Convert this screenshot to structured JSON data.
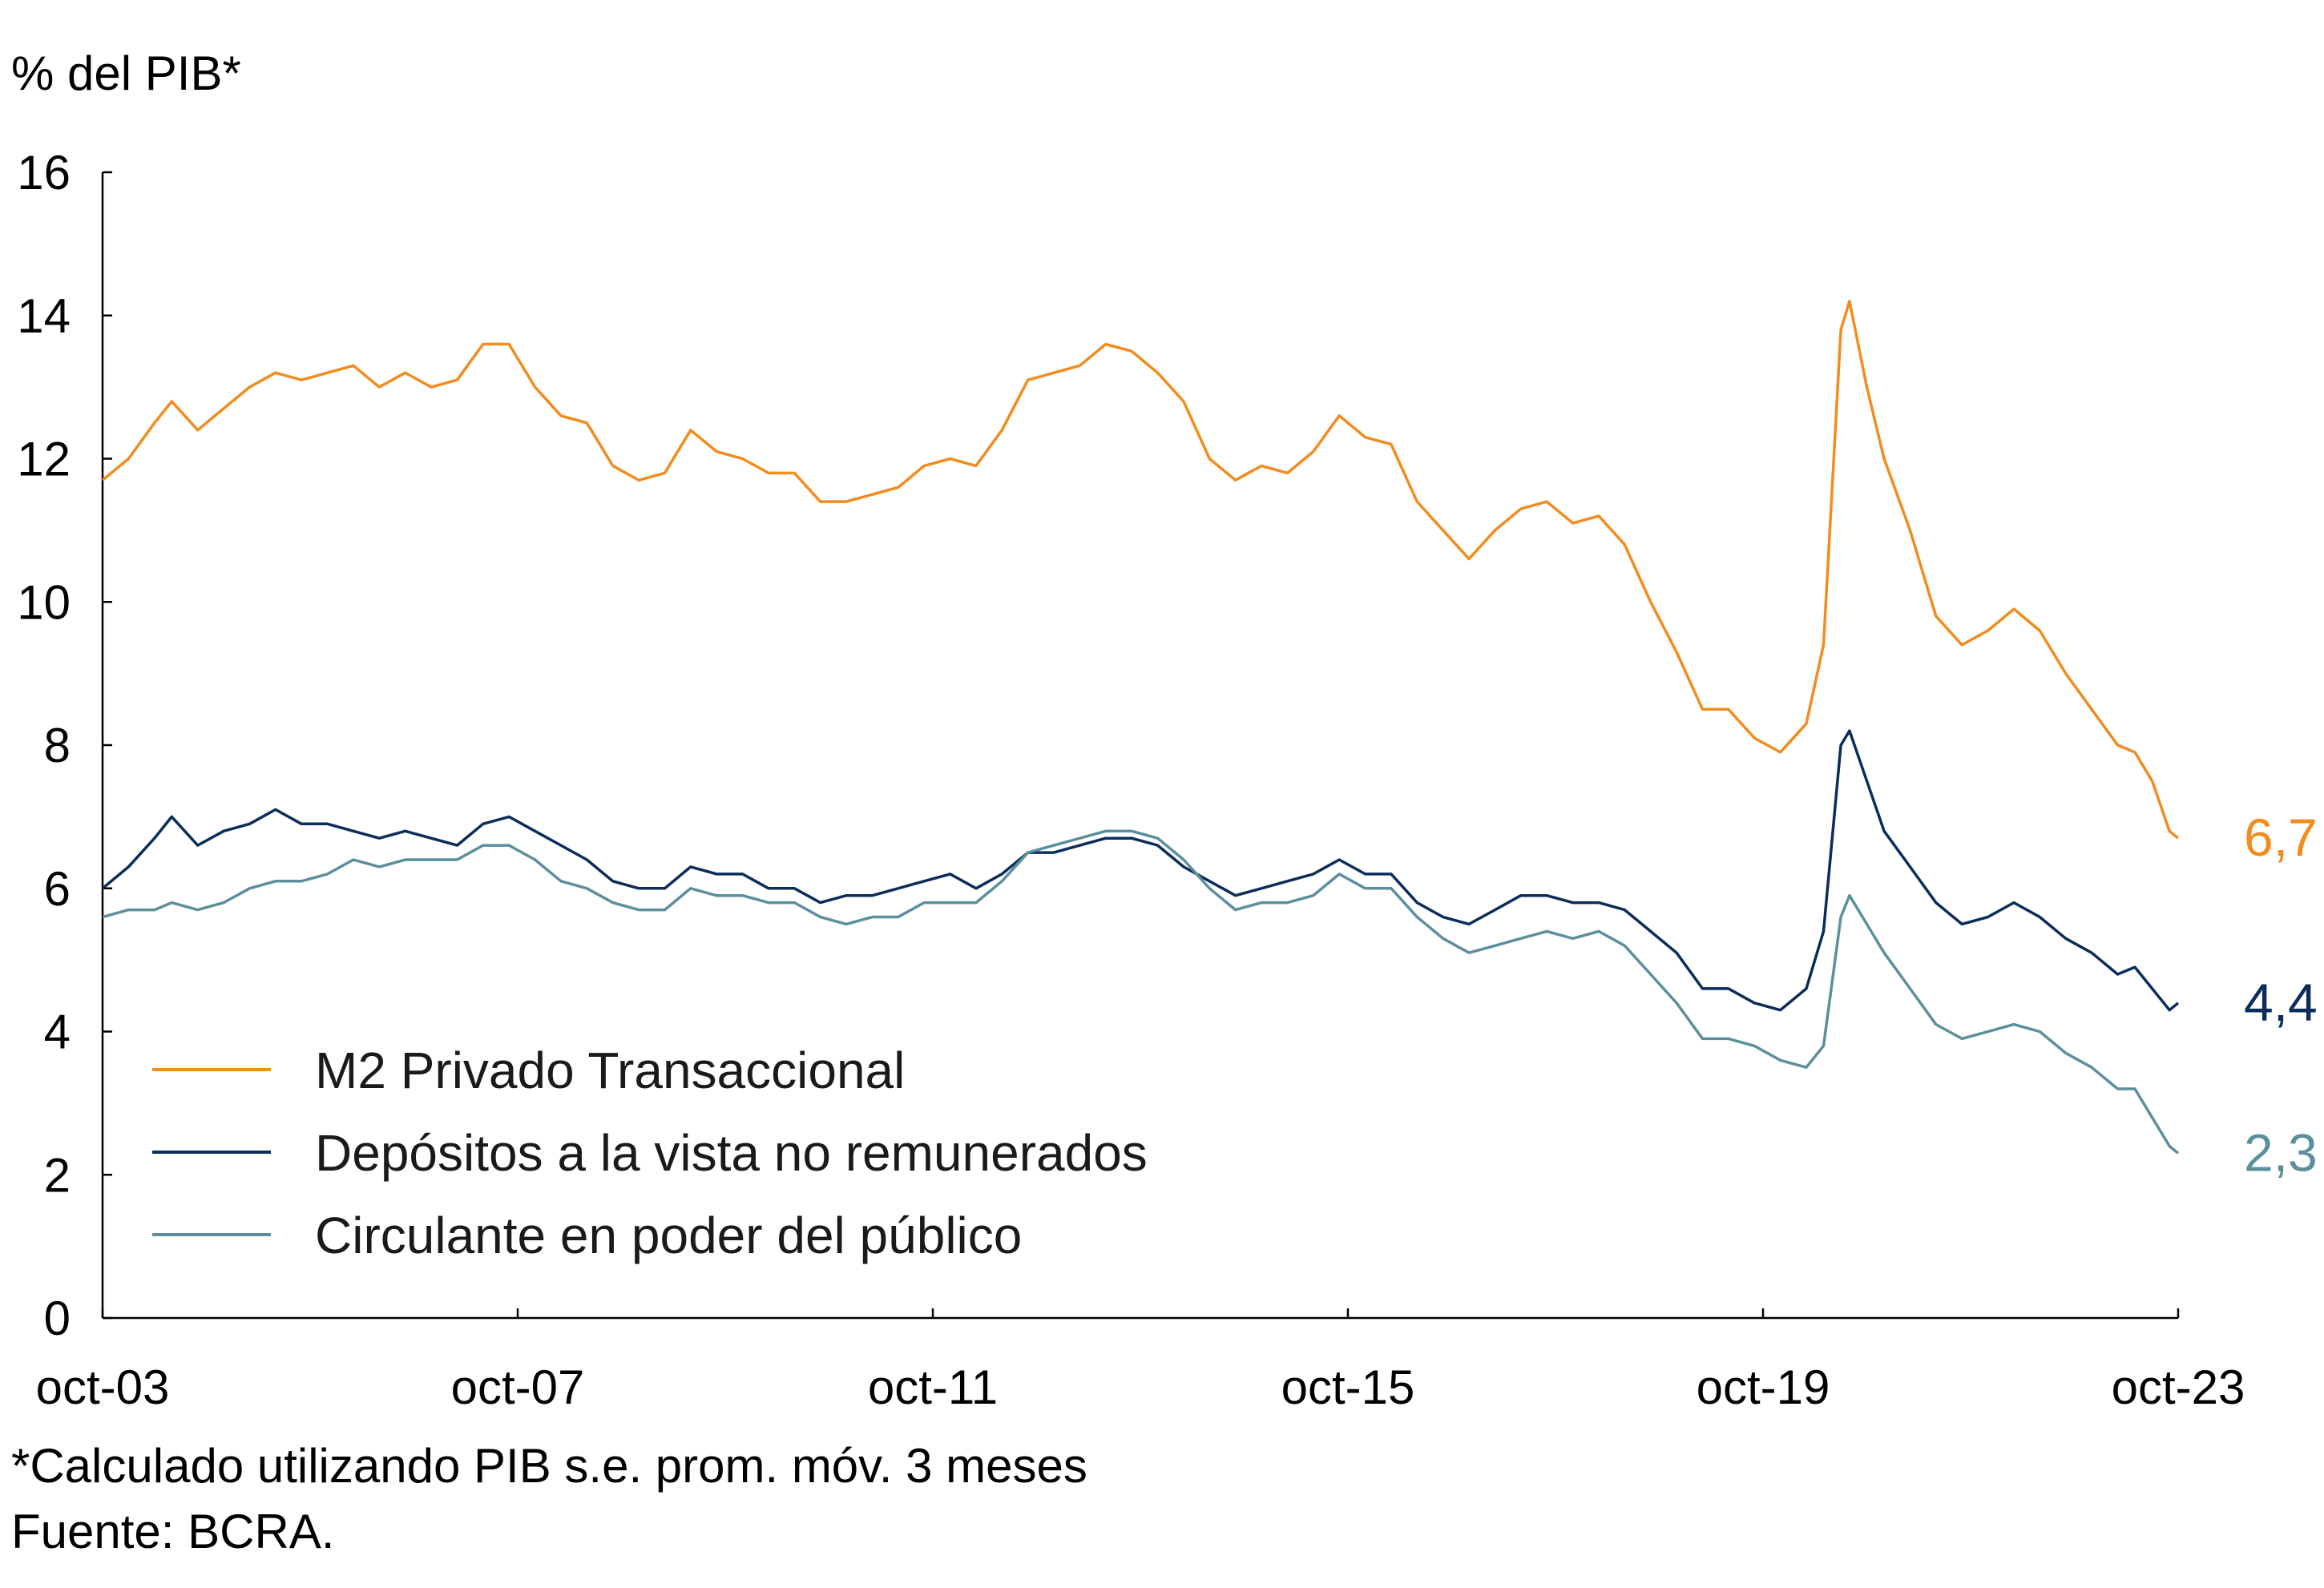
{
  "chart_data": {
    "type": "line",
    "ylabel": "% del PIB*",
    "ylim": [
      0,
      16
    ],
    "y_ticks": [
      "0",
      "2",
      "4",
      "6",
      "8",
      "10",
      "12",
      "14",
      "16"
    ],
    "x_ticks": [
      "oct-03",
      "oct-07",
      "oct-11",
      "oct-15",
      "oct-19",
      "oct-23"
    ],
    "x_range": [
      "2003-10",
      "2023-10"
    ],
    "grid": false,
    "legend_position": "bottom-left",
    "series": [
      {
        "name": "M2 Privado Transaccional",
        "color": "#F28C1E",
        "end_label": "6,7",
        "points": [
          [
            "2003-10",
            11.7
          ],
          [
            "2004-01",
            12.0
          ],
          [
            "2004-04",
            12.5
          ],
          [
            "2004-06",
            12.8
          ],
          [
            "2004-09",
            12.4
          ],
          [
            "2004-12",
            12.7
          ],
          [
            "2005-03",
            13.0
          ],
          [
            "2005-06",
            13.2
          ],
          [
            "2005-09",
            13.1
          ],
          [
            "2005-12",
            13.2
          ],
          [
            "2006-03",
            13.3
          ],
          [
            "2006-06",
            13.0
          ],
          [
            "2006-09",
            13.2
          ],
          [
            "2006-12",
            13.0
          ],
          [
            "2007-03",
            13.1
          ],
          [
            "2007-06",
            13.6
          ],
          [
            "2007-09",
            13.6
          ],
          [
            "2007-12",
            13.0
          ],
          [
            "2008-03",
            12.6
          ],
          [
            "2008-06",
            12.5
          ],
          [
            "2008-09",
            11.9
          ],
          [
            "2008-12",
            11.7
          ],
          [
            "2009-03",
            11.8
          ],
          [
            "2009-06",
            12.4
          ],
          [
            "2009-09",
            12.1
          ],
          [
            "2009-12",
            12.0
          ],
          [
            "2010-03",
            11.8
          ],
          [
            "2010-06",
            11.8
          ],
          [
            "2010-09",
            11.4
          ],
          [
            "2010-12",
            11.4
          ],
          [
            "2011-03",
            11.5
          ],
          [
            "2011-06",
            11.6
          ],
          [
            "2011-09",
            11.9
          ],
          [
            "2011-12",
            12.0
          ],
          [
            "2012-03",
            11.9
          ],
          [
            "2012-06",
            12.4
          ],
          [
            "2012-09",
            13.1
          ],
          [
            "2012-12",
            13.2
          ],
          [
            "2013-03",
            13.3
          ],
          [
            "2013-06",
            13.6
          ],
          [
            "2013-09",
            13.5
          ],
          [
            "2013-12",
            13.2
          ],
          [
            "2014-03",
            12.8
          ],
          [
            "2014-06",
            12.0
          ],
          [
            "2014-09",
            11.7
          ],
          [
            "2014-12",
            11.9
          ],
          [
            "2015-03",
            11.8
          ],
          [
            "2015-06",
            12.1
          ],
          [
            "2015-09",
            12.6
          ],
          [
            "2015-12",
            12.3
          ],
          [
            "2016-03",
            12.2
          ],
          [
            "2016-06",
            11.4
          ],
          [
            "2016-09",
            11.0
          ],
          [
            "2016-12",
            10.6
          ],
          [
            "2017-03",
            11.0
          ],
          [
            "2017-06",
            11.3
          ],
          [
            "2017-09",
            11.4
          ],
          [
            "2017-12",
            11.1
          ],
          [
            "2018-03",
            11.2
          ],
          [
            "2018-06",
            10.8
          ],
          [
            "2018-09",
            10.0
          ],
          [
            "2018-12",
            9.3
          ],
          [
            "2019-03",
            8.5
          ],
          [
            "2019-06",
            8.5
          ],
          [
            "2019-09",
            8.1
          ],
          [
            "2019-12",
            7.9
          ],
          [
            "2020-03",
            8.3
          ],
          [
            "2020-05",
            9.4
          ],
          [
            "2020-07",
            13.8
          ],
          [
            "2020-08",
            14.2
          ],
          [
            "2020-10",
            13.0
          ],
          [
            "2020-12",
            12.0
          ],
          [
            "2021-03",
            11.0
          ],
          [
            "2021-06",
            9.8
          ],
          [
            "2021-09",
            9.4
          ],
          [
            "2021-12",
            9.6
          ],
          [
            "2022-03",
            9.9
          ],
          [
            "2022-06",
            9.6
          ],
          [
            "2022-09",
            9.0
          ],
          [
            "2022-12",
            8.5
          ],
          [
            "2023-03",
            8.0
          ],
          [
            "2023-05",
            7.9
          ],
          [
            "2023-07",
            7.5
          ],
          [
            "2023-09",
            6.8
          ],
          [
            "2023-10",
            6.7
          ]
        ]
      },
      {
        "name": "Depósitos a la vista no remunerados",
        "color": "#0B2D5B",
        "end_label": "4,4",
        "points": [
          [
            "2003-10",
            6.0
          ],
          [
            "2004-01",
            6.3
          ],
          [
            "2004-04",
            6.7
          ],
          [
            "2004-06",
            7.0
          ],
          [
            "2004-09",
            6.6
          ],
          [
            "2004-12",
            6.8
          ],
          [
            "2005-03",
            6.9
          ],
          [
            "2005-06",
            7.1
          ],
          [
            "2005-09",
            6.9
          ],
          [
            "2005-12",
            6.9
          ],
          [
            "2006-03",
            6.8
          ],
          [
            "2006-06",
            6.7
          ],
          [
            "2006-09",
            6.8
          ],
          [
            "2006-12",
            6.7
          ],
          [
            "2007-03",
            6.6
          ],
          [
            "2007-06",
            6.9
          ],
          [
            "2007-09",
            7.0
          ],
          [
            "2007-12",
            6.8
          ],
          [
            "2008-03",
            6.6
          ],
          [
            "2008-06",
            6.4
          ],
          [
            "2008-09",
            6.1
          ],
          [
            "2008-12",
            6.0
          ],
          [
            "2009-03",
            6.0
          ],
          [
            "2009-06",
            6.3
          ],
          [
            "2009-09",
            6.2
          ],
          [
            "2009-12",
            6.2
          ],
          [
            "2010-03",
            6.0
          ],
          [
            "2010-06",
            6.0
          ],
          [
            "2010-09",
            5.8
          ],
          [
            "2010-12",
            5.9
          ],
          [
            "2011-03",
            5.9
          ],
          [
            "2011-06",
            6.0
          ],
          [
            "2011-09",
            6.1
          ],
          [
            "2011-12",
            6.2
          ],
          [
            "2012-03",
            6.0
          ],
          [
            "2012-06",
            6.2
          ],
          [
            "2012-09",
            6.5
          ],
          [
            "2012-12",
            6.5
          ],
          [
            "2013-03",
            6.6
          ],
          [
            "2013-06",
            6.7
          ],
          [
            "2013-09",
            6.7
          ],
          [
            "2013-12",
            6.6
          ],
          [
            "2014-03",
            6.3
          ],
          [
            "2014-06",
            6.1
          ],
          [
            "2014-09",
            5.9
          ],
          [
            "2014-12",
            6.0
          ],
          [
            "2015-03",
            6.1
          ],
          [
            "2015-06",
            6.2
          ],
          [
            "2015-09",
            6.4
          ],
          [
            "2015-12",
            6.2
          ],
          [
            "2016-03",
            6.2
          ],
          [
            "2016-06",
            5.8
          ],
          [
            "2016-09",
            5.6
          ],
          [
            "2016-12",
            5.5
          ],
          [
            "2017-03",
            5.7
          ],
          [
            "2017-06",
            5.9
          ],
          [
            "2017-09",
            5.9
          ],
          [
            "2017-12",
            5.8
          ],
          [
            "2018-03",
            5.8
          ],
          [
            "2018-06",
            5.7
          ],
          [
            "2018-09",
            5.4
          ],
          [
            "2018-12",
            5.1
          ],
          [
            "2019-03",
            4.6
          ],
          [
            "2019-06",
            4.6
          ],
          [
            "2019-09",
            4.4
          ],
          [
            "2019-12",
            4.3
          ],
          [
            "2020-03",
            4.6
          ],
          [
            "2020-05",
            5.4
          ],
          [
            "2020-07",
            8.0
          ],
          [
            "2020-08",
            8.2
          ],
          [
            "2020-10",
            7.5
          ],
          [
            "2020-12",
            6.8
          ],
          [
            "2021-03",
            6.3
          ],
          [
            "2021-06",
            5.8
          ],
          [
            "2021-09",
            5.5
          ],
          [
            "2021-12",
            5.6
          ],
          [
            "2022-03",
            5.8
          ],
          [
            "2022-06",
            5.6
          ],
          [
            "2022-09",
            5.3
          ],
          [
            "2022-12",
            5.1
          ],
          [
            "2023-03",
            4.8
          ],
          [
            "2023-05",
            4.9
          ],
          [
            "2023-07",
            4.6
          ],
          [
            "2023-09",
            4.3
          ],
          [
            "2023-10",
            4.4
          ]
        ]
      },
      {
        "name": "Circulante en poder del público",
        "color": "#5C8F9C",
        "end_label": "2,3",
        "points": [
          [
            "2003-10",
            5.6
          ],
          [
            "2004-01",
            5.7
          ],
          [
            "2004-04",
            5.7
          ],
          [
            "2004-06",
            5.8
          ],
          [
            "2004-09",
            5.7
          ],
          [
            "2004-12",
            5.8
          ],
          [
            "2005-03",
            6.0
          ],
          [
            "2005-06",
            6.1
          ],
          [
            "2005-09",
            6.1
          ],
          [
            "2005-12",
            6.2
          ],
          [
            "2006-03",
            6.4
          ],
          [
            "2006-06",
            6.3
          ],
          [
            "2006-09",
            6.4
          ],
          [
            "2006-12",
            6.4
          ],
          [
            "2007-03",
            6.4
          ],
          [
            "2007-06",
            6.6
          ],
          [
            "2007-09",
            6.6
          ],
          [
            "2007-12",
            6.4
          ],
          [
            "2008-03",
            6.1
          ],
          [
            "2008-06",
            6.0
          ],
          [
            "2008-09",
            5.8
          ],
          [
            "2008-12",
            5.7
          ],
          [
            "2009-03",
            5.7
          ],
          [
            "2009-06",
            6.0
          ],
          [
            "2009-09",
            5.9
          ],
          [
            "2009-12",
            5.9
          ],
          [
            "2010-03",
            5.8
          ],
          [
            "2010-06",
            5.8
          ],
          [
            "2010-09",
            5.6
          ],
          [
            "2010-12",
            5.5
          ],
          [
            "2011-03",
            5.6
          ],
          [
            "2011-06",
            5.6
          ],
          [
            "2011-09",
            5.8
          ],
          [
            "2011-12",
            5.8
          ],
          [
            "2012-03",
            5.8
          ],
          [
            "2012-06",
            6.1
          ],
          [
            "2012-09",
            6.5
          ],
          [
            "2012-12",
            6.6
          ],
          [
            "2013-03",
            6.7
          ],
          [
            "2013-06",
            6.8
          ],
          [
            "2013-09",
            6.8
          ],
          [
            "2013-12",
            6.7
          ],
          [
            "2014-03",
            6.4
          ],
          [
            "2014-06",
            6.0
          ],
          [
            "2014-09",
            5.7
          ],
          [
            "2014-12",
            5.8
          ],
          [
            "2015-03",
            5.8
          ],
          [
            "2015-06",
            5.9
          ],
          [
            "2015-09",
            6.2
          ],
          [
            "2015-12",
            6.0
          ],
          [
            "2016-03",
            6.0
          ],
          [
            "2016-06",
            5.6
          ],
          [
            "2016-09",
            5.3
          ],
          [
            "2016-12",
            5.1
          ],
          [
            "2017-03",
            5.2
          ],
          [
            "2017-06",
            5.3
          ],
          [
            "2017-09",
            5.4
          ],
          [
            "2017-12",
            5.3
          ],
          [
            "2018-03",
            5.4
          ],
          [
            "2018-06",
            5.2
          ],
          [
            "2018-09",
            4.8
          ],
          [
            "2018-12",
            4.4
          ],
          [
            "2019-03",
            3.9
          ],
          [
            "2019-06",
            3.9
          ],
          [
            "2019-09",
            3.8
          ],
          [
            "2019-12",
            3.6
          ],
          [
            "2020-03",
            3.5
          ],
          [
            "2020-05",
            3.8
          ],
          [
            "2020-07",
            5.6
          ],
          [
            "2020-08",
            5.9
          ],
          [
            "2020-10",
            5.5
          ],
          [
            "2020-12",
            5.1
          ],
          [
            "2021-03",
            4.6
          ],
          [
            "2021-06",
            4.1
          ],
          [
            "2021-09",
            3.9
          ],
          [
            "2021-12",
            4.0
          ],
          [
            "2022-03",
            4.1
          ],
          [
            "2022-06",
            4.0
          ],
          [
            "2022-09",
            3.7
          ],
          [
            "2022-12",
            3.5
          ],
          [
            "2023-03",
            3.2
          ],
          [
            "2023-05",
            3.2
          ],
          [
            "2023-07",
            2.8
          ],
          [
            "2023-09",
            2.4
          ],
          [
            "2023-10",
            2.3
          ]
        ]
      }
    ],
    "footnotes": [
      "*Calculado utilizando PIB s.e. prom. móv. 3 meses",
      "Fuente: BCRA."
    ]
  }
}
